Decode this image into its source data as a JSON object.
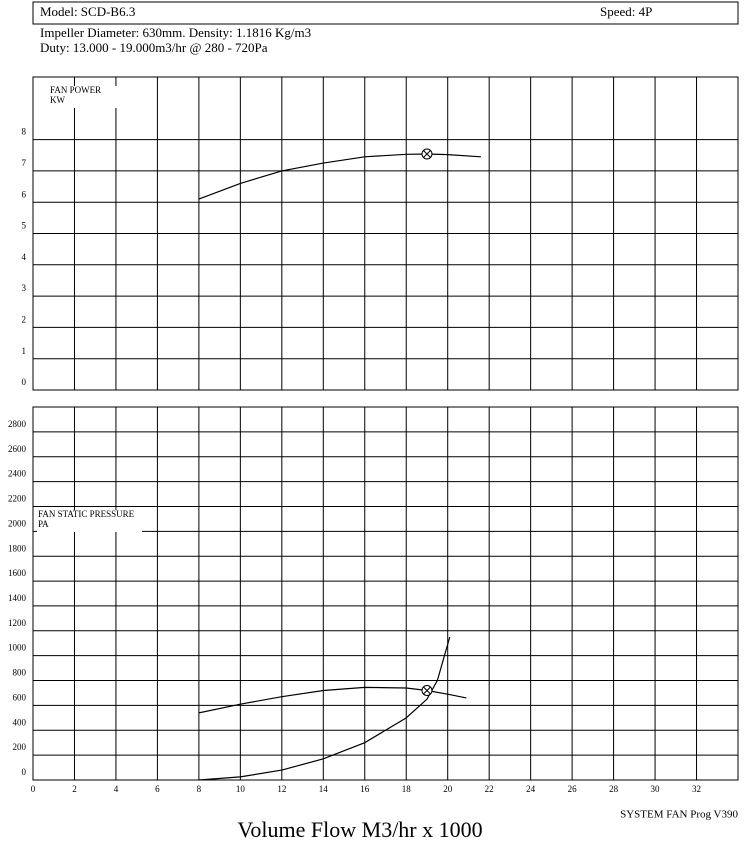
{
  "header": {
    "model": "Model: SCD-B6.3",
    "speed": "Speed: 4P",
    "info": [
      "Impeller Diameter: 630mm. Density: 1.1816 Kg/m3",
      "Duty: 13.000 - 19.000m3/hr @ 280 - 720Pa"
    ]
  },
  "chart_data": [
    {
      "type": "line",
      "y_label": [
        "FAN POWER",
        "KW"
      ],
      "xlim": [
        0,
        34
      ],
      "xticks": [
        0,
        2,
        4,
        6,
        8,
        10,
        12,
        14,
        16,
        18,
        20,
        22,
        24,
        26,
        28,
        30,
        32
      ],
      "show_xtick_labels": false,
      "ylim": [
        0,
        10
      ],
      "yticks": [
        0,
        1,
        2,
        3,
        4,
        5,
        6,
        7,
        8
      ],
      "grid": true,
      "series": [
        {
          "color": "#000000",
          "x": [
            8,
            10,
            12,
            14,
            16,
            18,
            19,
            20,
            21.6
          ],
          "values": [
            6.1,
            6.6,
            7.0,
            7.25,
            7.45,
            7.53,
            7.54,
            7.52,
            7.45
          ]
        }
      ],
      "operating_point": {
        "x": 19,
        "y": 7.54
      }
    },
    {
      "type": "line",
      "y_label": [
        "FAN STATIC PRESSURE",
        "PA"
      ],
      "xlim": [
        0,
        34
      ],
      "xticks": [
        0,
        2,
        4,
        6,
        8,
        10,
        12,
        14,
        16,
        18,
        20,
        22,
        24,
        26,
        28,
        30,
        32
      ],
      "show_xtick_labels": true,
      "ylim": [
        0,
        3000
      ],
      "yticks": [
        0,
        200,
        400,
        600,
        800,
        1000,
        1200,
        1400,
        1600,
        1800,
        2000,
        2200,
        2400,
        2600,
        2800
      ],
      "grid": true,
      "series": [
        {
          "color": "#000000",
          "x": [
            8,
            10,
            12,
            14,
            16,
            18,
            19,
            20,
            20.9
          ],
          "values": [
            540,
            610,
            670,
            720,
            745,
            740,
            720,
            690,
            660
          ]
        },
        {
          "color": "#000000",
          "x": [
            8,
            10,
            12,
            14,
            16,
            18,
            19,
            19.5,
            20.1
          ],
          "values": [
            0,
            25,
            80,
            170,
            300,
            500,
            650,
            800,
            1150
          ]
        }
      ],
      "operating_point": {
        "x": 19,
        "y": 720
      }
    }
  ],
  "footer": {
    "program": "SYSTEM FAN Prog V390",
    "x_title": "Volume Flow M3/hr x 1000"
  }
}
